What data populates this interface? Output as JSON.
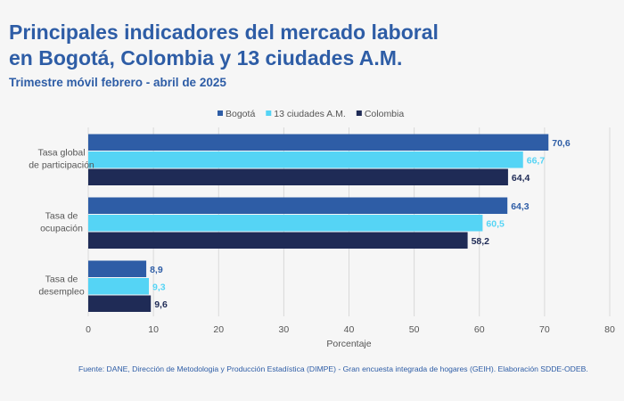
{
  "header": {
    "title_line1": "Principales indicadores del mercado laboral",
    "title_line2": "en Bogotá, Colombia y 13 ciudades A.M.",
    "subtitle": "Trimestre móvil febrero - abril de 2025"
  },
  "footer": {
    "source": "Fuente: DANE, Dirección de Metodologia y Producción Estadística (DIMPE) - Gran encuesta integrada de hogares (GEIH). Elaboración SDDE-ODEB."
  },
  "chart_data": {
    "type": "bar",
    "orientation": "horizontal",
    "categories": [
      [
        "Tasa global",
        "de participación"
      ],
      [
        "Tasa de",
        "ocupación"
      ],
      [
        "Tasa de",
        "desempleo"
      ]
    ],
    "series": [
      {
        "name": "Bogotá",
        "color": "#2e5da6",
        "label_color": "#2e5da6",
        "values": [
          70.6,
          64.3,
          8.9
        ],
        "labels": [
          "70,6",
          "64,3",
          "8,9"
        ]
      },
      {
        "name": "13 ciudades A.M.",
        "color": "#55d4f5",
        "label_color": "#55d4f5",
        "values": [
          66.7,
          60.5,
          9.3
        ],
        "labels": [
          "66,7",
          "60,5",
          "9,3"
        ]
      },
      {
        "name": "Colombia",
        "color": "#1f2b56",
        "label_color": "#1f2b56",
        "values": [
          64.4,
          58.2,
          9.6
        ],
        "labels": [
          "64,4",
          "58,2",
          "9,6"
        ]
      }
    ],
    "xlabel": "Porcentaje",
    "ylabel": "",
    "xlim": [
      0,
      80
    ],
    "xticks": [
      0,
      10,
      20,
      30,
      40,
      50,
      60,
      70,
      80
    ],
    "grid": "vertical",
    "legend_position": "top-right"
  }
}
